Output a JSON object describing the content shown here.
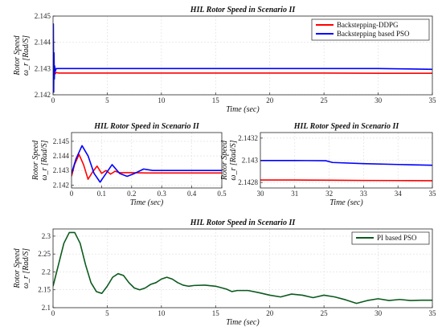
{
  "chart_data": [
    {
      "type": "line",
      "title": "HIL Rotor Speed in Scenario II",
      "xlabel": "Time (sec)",
      "ylabel": [
        "Rotor Speed",
        "ω_r [Rad/S]"
      ],
      "xlim": [
        0,
        35
      ],
      "ylim": [
        2.142,
        2.145
      ],
      "xticks": [
        0,
        5,
        10,
        15,
        20,
        25,
        30,
        35
      ],
      "yticks": [
        2.142,
        2.143,
        2.144,
        2.145
      ],
      "legend_position": "top-right",
      "grid": true,
      "series": [
        {
          "name": "Backstepping-DDPG",
          "color": "#ff0000",
          "x": [
            0,
            0.05,
            0.1,
            0.2,
            0.3,
            0.5,
            1,
            5,
            10,
            15,
            20,
            25,
            30,
            35
          ],
          "y": [
            2.1429,
            2.1426,
            2.1431,
            2.1428,
            2.14285,
            2.14283,
            2.14283,
            2.14283,
            2.14283,
            2.14283,
            2.14283,
            2.14283,
            2.14282,
            2.14282
          ]
        },
        {
          "name": "Backstepping based PSO",
          "color": "#0000ff",
          "x": [
            0,
            0.03,
            0.06,
            0.09,
            0.12,
            0.15,
            0.2,
            0.3,
            0.5,
            1,
            5,
            10,
            15,
            20,
            25,
            30,
            32,
            35
          ],
          "y": [
            2.1428,
            2.1447,
            2.1421,
            2.1436,
            2.1426,
            2.1431,
            2.1429,
            2.143,
            2.143,
            2.143,
            2.143,
            2.143,
            2.143,
            2.143,
            2.143,
            2.143,
            2.14299,
            2.14297
          ]
        }
      ]
    },
    {
      "type": "line",
      "title": "HIL Rotor Speed in Scenario II",
      "xlabel": "Time (sec)",
      "ylabel": [
        "Rotor Speed",
        "ω_r [Rad/S]"
      ],
      "xlim": [
        0,
        0.5
      ],
      "ylim": [
        2.1418,
        2.1456
      ],
      "xticks": [
        0,
        0.1,
        0.2,
        0.3,
        0.4,
        0.5
      ],
      "yticks": [
        2.142,
        2.143,
        2.144,
        2.145
      ],
      "grid": true,
      "series": [
        {
          "color": "#ff0000",
          "x": [
            0,
            0.01,
            0.025,
            0.04,
            0.055,
            0.07,
            0.085,
            0.1,
            0.115,
            0.13,
            0.145,
            0.16,
            0.18,
            0.2,
            0.25,
            0.3,
            0.4,
            0.5
          ],
          "y": [
            2.1426,
            2.1434,
            2.1441,
            2.1434,
            2.1424,
            2.1429,
            2.1433,
            2.1428,
            2.143,
            2.14275,
            2.14295,
            2.14285,
            2.14285,
            2.14285,
            2.14283,
            2.14283,
            2.14283,
            2.14283
          ]
        },
        {
          "color": "#0000ff",
          "x": [
            0,
            0.015,
            0.035,
            0.055,
            0.075,
            0.095,
            0.115,
            0.135,
            0.16,
            0.185,
            0.21,
            0.24,
            0.27,
            0.3,
            0.35,
            0.4,
            0.45,
            0.5
          ],
          "y": [
            2.1428,
            2.1438,
            2.1447,
            2.144,
            2.1428,
            2.1422,
            2.1428,
            2.1434,
            2.1428,
            2.1426,
            2.1428,
            2.1431,
            2.143,
            2.143,
            2.143,
            2.143,
            2.143,
            2.143
          ]
        }
      ]
    },
    {
      "type": "line",
      "title": "HIL Rotor Speed in Scenario II",
      "xlabel": "Time (sec)",
      "ylabel": [
        "Rotor Speed",
        "ω_r [Rad/S]"
      ],
      "xlim": [
        30,
        35
      ],
      "ylim": [
        2.14275,
        2.14325
      ],
      "xticks": [
        30,
        31,
        32,
        33,
        34,
        35
      ],
      "yticks": [
        2.1428,
        2.143,
        2.1432
      ],
      "ytick_labels": [
        "2.1428",
        "2.143",
        "2.1432"
      ],
      "grid": true,
      "series": [
        {
          "color": "#ff0000",
          "x": [
            30,
            31,
            32,
            33,
            34,
            35
          ],
          "y": [
            2.142822,
            2.142822,
            2.14282,
            2.142818,
            2.142817,
            2.142816
          ]
        },
        {
          "color": "#0000ff",
          "x": [
            30,
            31,
            31.9,
            32.1,
            33,
            34,
            35
          ],
          "y": [
            2.142998,
            2.142998,
            2.142996,
            2.14298,
            2.14297,
            2.142962,
            2.142955
          ]
        }
      ]
    },
    {
      "type": "line",
      "title": "HIL Rotor Speed in Scenario II",
      "xlabel": "Time (sec)",
      "ylabel": [
        "Rotor Speed",
        "ω_r [Rad/S]"
      ],
      "xlim": [
        0,
        35
      ],
      "ylim": [
        2.1,
        2.32
      ],
      "xticks": [
        0,
        5,
        10,
        15,
        20,
        25,
        30,
        35
      ],
      "yticks": [
        2.1,
        2.15,
        2.2,
        2.25,
        2.3
      ],
      "legend_position": "top-right",
      "grid": true,
      "series": [
        {
          "name": "PI based PSO",
          "color": "#0b5a1e",
          "x": [
            0,
            0.5,
            1,
            1.5,
            2,
            2.5,
            3,
            3.5,
            4,
            4.5,
            5,
            5.5,
            6,
            6.5,
            7,
            7.5,
            8,
            8.5,
            9,
            9.5,
            10,
            10.5,
            11,
            11.5,
            12,
            12.5,
            13,
            14,
            15,
            16,
            16.5,
            17,
            18,
            19,
            20,
            21,
            22,
            23,
            24,
            25,
            26,
            27,
            28,
            29,
            30,
            31,
            32,
            33,
            34,
            35
          ],
          "y": [
            2.16,
            2.22,
            2.28,
            2.31,
            2.31,
            2.28,
            2.22,
            2.17,
            2.145,
            2.14,
            2.16,
            2.185,
            2.195,
            2.19,
            2.17,
            2.155,
            2.15,
            2.155,
            2.165,
            2.17,
            2.18,
            2.185,
            2.18,
            2.17,
            2.163,
            2.16,
            2.162,
            2.163,
            2.16,
            2.152,
            2.145,
            2.148,
            2.148,
            2.142,
            2.135,
            2.13,
            2.138,
            2.135,
            2.128,
            2.135,
            2.13,
            2.122,
            2.112,
            2.12,
            2.125,
            2.12,
            2.123,
            2.12,
            2.121,
            2.121
          ]
        }
      ]
    }
  ]
}
